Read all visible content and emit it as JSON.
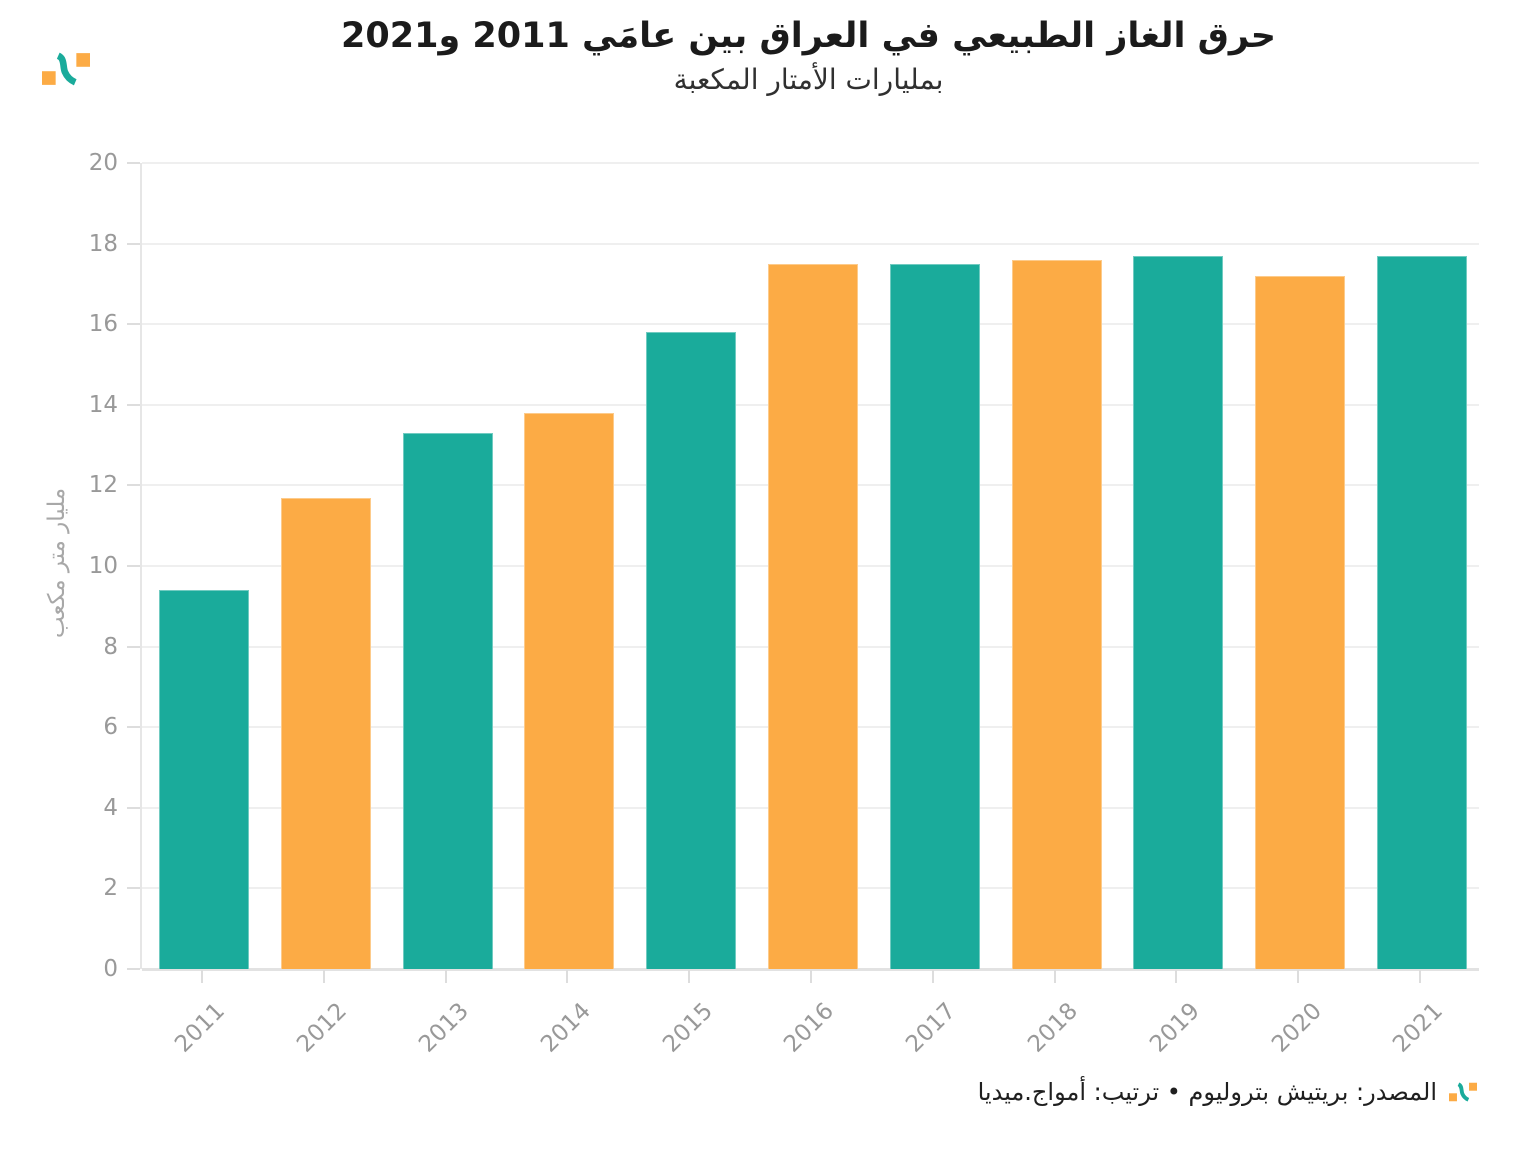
{
  "header": {
    "title": "حرق الغاز الطبيعي في العراق بين عامَي 2011 و2021",
    "subtitle": "بمليارات الأمتار المكعبة"
  },
  "chart_data": {
    "type": "bar",
    "title": "حرق الغاز الطبيعي في العراق بين عامَي 2011 و2021",
    "subtitle": "بمليارات الأمتار المكعبة",
    "categories": [
      "2011",
      "2012",
      "2013",
      "2014",
      "2015",
      "2016",
      "2017",
      "2018",
      "2019",
      "2020",
      "2021"
    ],
    "values": [
      9.4,
      11.7,
      13.3,
      13.8,
      15.8,
      17.5,
      17.5,
      17.6,
      17.7,
      17.2,
      17.7
    ],
    "bar_colors": [
      "#1aab9b",
      "#fcab45",
      "#1aab9b",
      "#fcab45",
      "#1aab9b",
      "#fcab45",
      "#1aab9b",
      "#fcab45",
      "#1aab9b",
      "#fcab45",
      "#1aab9b"
    ],
    "xlabel": "",
    "ylabel": "مليار متر مكعب",
    "ylim": [
      0,
      20
    ],
    "yticks": [
      0,
      2,
      4,
      6,
      8,
      10,
      12,
      14,
      16,
      18,
      20
    ],
    "grid": "horizontal",
    "legend": "none"
  },
  "footer": {
    "source": "المصدر: بريتيش بتروليوم • ترتيب: أمواج.ميديا"
  },
  "colors": {
    "teal": "#1aab9b",
    "orange": "#fcab45",
    "grid": "#efefef",
    "axis_baseline": "#e2e2e2",
    "tick_label": "#999999",
    "title_text": "#1b1b1b",
    "background": "#ffffff"
  }
}
